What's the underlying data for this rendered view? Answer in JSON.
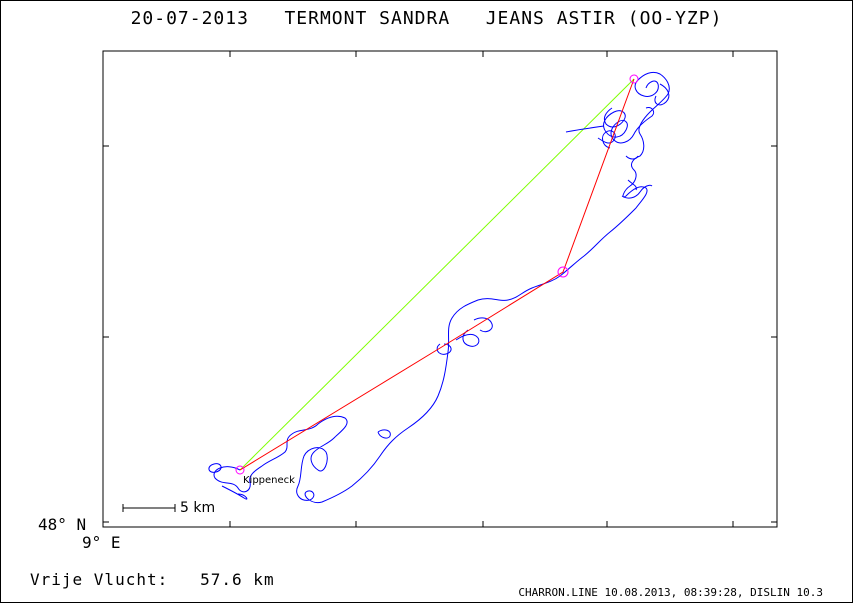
{
  "title": {
    "date": "20-07-2013",
    "pilot": "TERMONT SANDRA",
    "glider": "JEANS ASTIR (OO-YZP)"
  },
  "map": {
    "lat_label": "48° N",
    "lon_label": "9° E",
    "scale_label": "5 km",
    "place_label": "Kippeneck",
    "colors": {
      "track": "#0000ff",
      "task": "#ff0000",
      "closing_leg": "#7fff00",
      "turnpoint": "#ff00ff",
      "frame": "#000000"
    }
  },
  "summary": {
    "label": "Vrije Vlucht:",
    "value": "57.6 km"
  },
  "footer": {
    "text": "CHARRON.LINE 10.08.2013, 08:39:28, DISLIN 10.3"
  }
}
